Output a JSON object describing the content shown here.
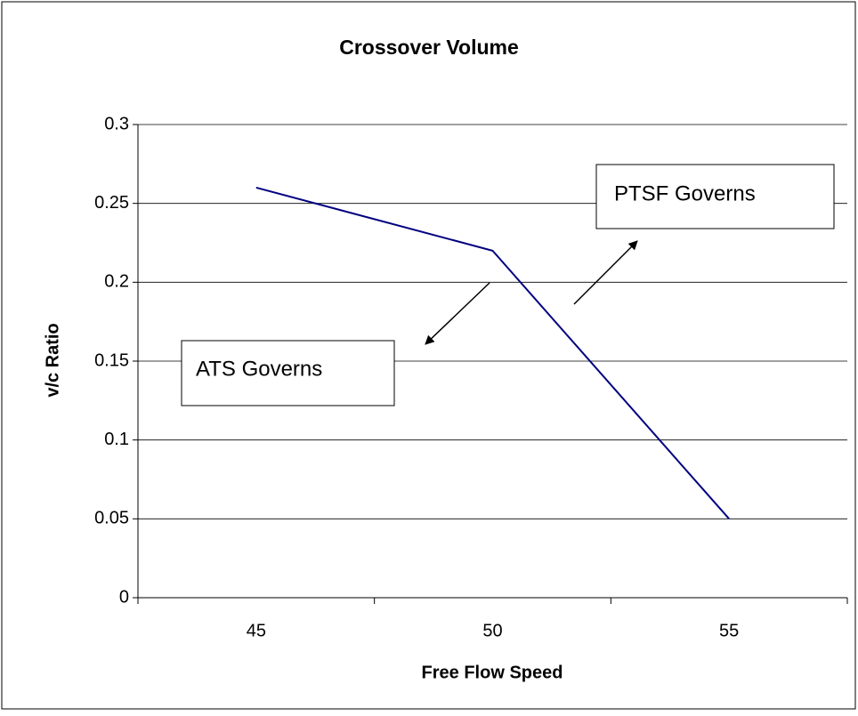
{
  "chart_data": {
    "type": "line",
    "title": "Crossover Volume",
    "x_label": "Free Flow Speed",
    "y_label": "v/c Ratio",
    "categories": [
      "45",
      "50",
      "55"
    ],
    "values": [
      0.26,
      0.22,
      0.05
    ],
    "color": "#000080",
    "ylim": [
      0,
      0.3
    ],
    "yticks": [
      0,
      0.05,
      0.1,
      0.15,
      0.2,
      0.25,
      0.3
    ],
    "grid": true,
    "annotations": [
      "PTSF Governs",
      "ATS Governs"
    ]
  }
}
